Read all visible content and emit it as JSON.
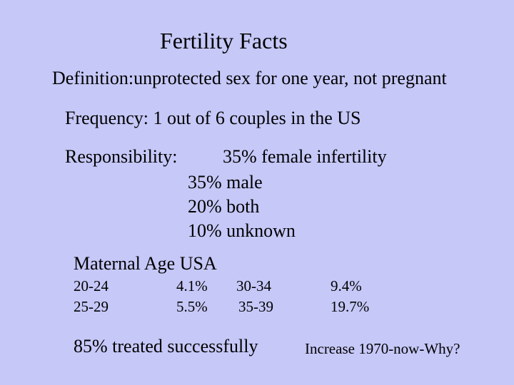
{
  "title": "Fertility Facts",
  "definition": "Definition:unprotected sex for one year, not pregnant",
  "frequency": "Frequency: 1 out of 6 couples in the US",
  "responsibility": {
    "label": "Responsibility:",
    "lines": [
      "35% female infertility",
      "35% male",
      "20% both",
      "10% unknown"
    ]
  },
  "maternal_age": {
    "title": "Maternal Age USA",
    "rows": [
      [
        "20-24",
        "4.1%",
        "30-34",
        "9.4%"
      ],
      [
        "25-29",
        "5.5%",
        "35-39",
        "19.7%"
      ]
    ]
  },
  "treated": "85% treated successfully",
  "increase": "Increase 1970-now-Why?"
}
